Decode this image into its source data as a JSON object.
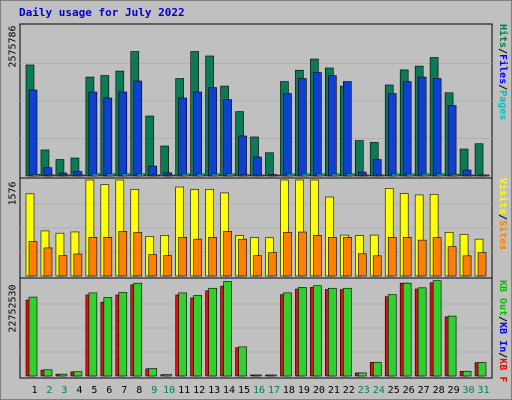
{
  "title": "Daily usage for July 2022",
  "chart_data": {
    "type": "bar",
    "title": "Daily usage for July 2022",
    "categories": [
      "1",
      "2",
      "3",
      "4",
      "5",
      "6",
      "7",
      "8",
      "9",
      "10",
      "11",
      "12",
      "13",
      "14",
      "15",
      "16",
      "17",
      "18",
      "19",
      "20",
      "21",
      "22",
      "23",
      "24",
      "25",
      "26",
      "27",
      "28",
      "29",
      "30",
      "31"
    ],
    "weekend_days": [
      "2",
      "3",
      "9",
      "10",
      "16",
      "17",
      "23",
      "24",
      "30",
      "31"
    ],
    "panels": [
      {
        "name": "hits-files-pages",
        "ymax_label": "2575786",
        "ymax": 2575786,
        "legend": [
          {
            "label": "Pages",
            "color": "#00c0c0"
          },
          {
            "label": "Files",
            "color": "#0000ff"
          },
          {
            "label": "Hits",
            "color": "#008040"
          }
        ],
        "series": [
          {
            "name": "Hits",
            "color": "#0c7a54",
            "values": [
              1906000,
              447000,
              283000,
              309000,
              1699000,
              1725000,
              1802000,
              2138000,
              1030000,
              515000,
              1674000,
              2138000,
              2061000,
              1544000,
              1106000,
              670000,
              399000,
              1622000,
              1816000,
              2009000,
              1855000,
              1544000,
              609000,
              577000,
              1563000,
              1822000,
              1887000,
              2035000,
              1429000,
              463000,
              554000
            ]
          },
          {
            "name": "Files",
            "color": "#1040d0",
            "values": [
              1476000,
              142000,
              51000,
              77000,
              1442000,
              1339000,
              1442000,
              1631000,
              170000,
              55000,
              1339000,
              1442000,
              1519000,
              1313000,
              687000,
              326000,
              26000,
              1416000,
              1674000,
              1777000,
              1725000,
              1622000,
              67000,
              283000,
              1416000,
              1622000,
              1699000,
              1674000,
              1210000,
              103000,
              13000
            ]
          },
          {
            "name": "Pages",
            "color": "#00c0c0",
            "values": [
              30000,
              12000,
              8000,
              8000,
              35000,
              35000,
              35000,
              35000,
              12000,
              8000,
              35000,
              35000,
              35000,
              35000,
              20000,
              12000,
              8000,
              35000,
              35000,
              35000,
              35000,
              35000,
              12000,
              12000,
              35000,
              35000,
              35000,
              35000,
              30000,
              8000,
              8000
            ]
          }
        ]
      },
      {
        "name": "visits-sites",
        "ymax_label": "1576",
        "ymax": 1576,
        "legend": [
          {
            "label": "Sites",
            "color": "#ff8000"
          },
          {
            "label": "Visits",
            "color": "#ffff00"
          }
        ],
        "series": [
          {
            "name": "Visits",
            "color": "#ffff00",
            "values": [
              1349,
              740,
              703,
              723,
              1576,
              1499,
              1576,
              1422,
              649,
              668,
              1461,
              1422,
              1422,
              1364,
              664,
              631,
              628,
              1576,
              1576,
              1576,
              1297,
              672,
              664,
              672,
              1437,
              1353,
              1331,
              1341,
              718,
              683,
              605
            ]
          },
          {
            "name": "Sites",
            "color": "#ff8000",
            "values": [
              565,
              461,
              334,
              361,
              635,
              635,
              732,
              713,
              351,
              334,
              635,
              605,
              635,
              732,
              605,
              334,
              384,
              718,
              722,
              668,
              635,
              635,
              364,
              331,
              635,
              635,
              589,
              631,
              481,
              331,
              384
            ]
          }
        ]
      },
      {
        "name": "kbin-kbout-kbf",
        "ymax_label": "22752530",
        "ymax": 22752530,
        "legend": [
          {
            "label": "KB F",
            "color": "#ff0000"
          },
          {
            "label": "KB In",
            "color": "#0000ff"
          },
          {
            "label": "KB Out",
            "color": "#00c000"
          }
        ],
        "series": [
          {
            "name": "KB F",
            "color": "#e01010",
            "values": [
              18000000,
              1400000,
              420000,
              970000,
              19200000,
              17500000,
              19200000,
              21600000,
              1700000,
              300000,
              19200000,
              18500000,
              20200000,
              21300000,
              6700000,
              100000,
              100000,
              19300000,
              20600000,
              21000000,
              20500000,
              20500000,
              710000,
              3240000,
              18800000,
              22000000,
              20600000,
              22100000,
              14000000,
              1100000,
              3160000
            ]
          },
          {
            "name": "KB Out",
            "color": "#30d030",
            "values": [
              18700000,
              1480000,
              450000,
              1020000,
              19700000,
              18600000,
              19800000,
              22000000,
              1780000,
              310000,
              19700000,
              19100000,
              20800000,
              22400000,
              6900000,
              120000,
              120000,
              19700000,
              21000000,
              21400000,
              20800000,
              20800000,
              730000,
              3260000,
              19300000,
              22000000,
              20900000,
              22600000,
              14200000,
              1130000,
              3190000
            ]
          }
        ]
      }
    ]
  }
}
